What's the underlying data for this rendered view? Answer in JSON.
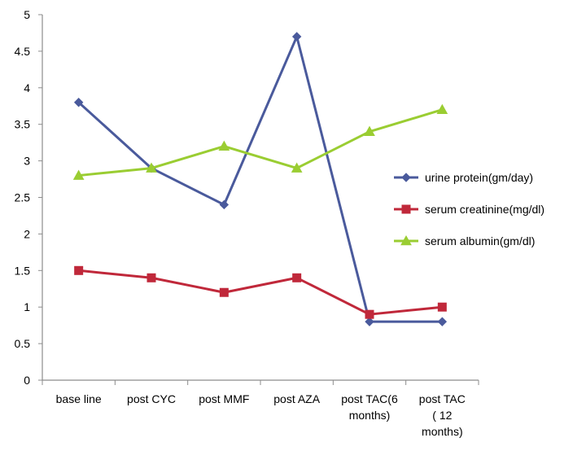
{
  "chart_data": {
    "type": "line",
    "title": "",
    "xlabel": "",
    "ylabel": "",
    "categories": [
      [
        "base line"
      ],
      [
        "post CYC"
      ],
      [
        "post MMF"
      ],
      [
        "post AZA"
      ],
      [
        "post TAC(6",
        "months)"
      ],
      [
        "post TAC",
        "( 12",
        "months)"
      ]
    ],
    "ylim": [
      0,
      5
    ],
    "yticks": [
      "0",
      "0.5",
      "1",
      "1.5",
      "2",
      "2.5",
      "3",
      "3.5",
      "4",
      "4.5",
      "5"
    ],
    "grid": false,
    "legend_position": "right",
    "series": [
      {
        "name": "urine protein(gm/day)",
        "color": "#4a5a9c",
        "marker": "diamond",
        "values": [
          3.8,
          2.9,
          2.4,
          4.7,
          0.8,
          0.8
        ]
      },
      {
        "name": "serum creatinine(mg/dl)",
        "color": "#c0283a",
        "marker": "square",
        "values": [
          1.5,
          1.4,
          1.2,
          1.4,
          0.9,
          1.0
        ]
      },
      {
        "name": "serum albumin(gm/dl)",
        "color": "#9acd32",
        "marker": "triangle",
        "values": [
          2.8,
          2.9,
          3.2,
          2.9,
          3.4,
          3.7
        ]
      }
    ]
  }
}
